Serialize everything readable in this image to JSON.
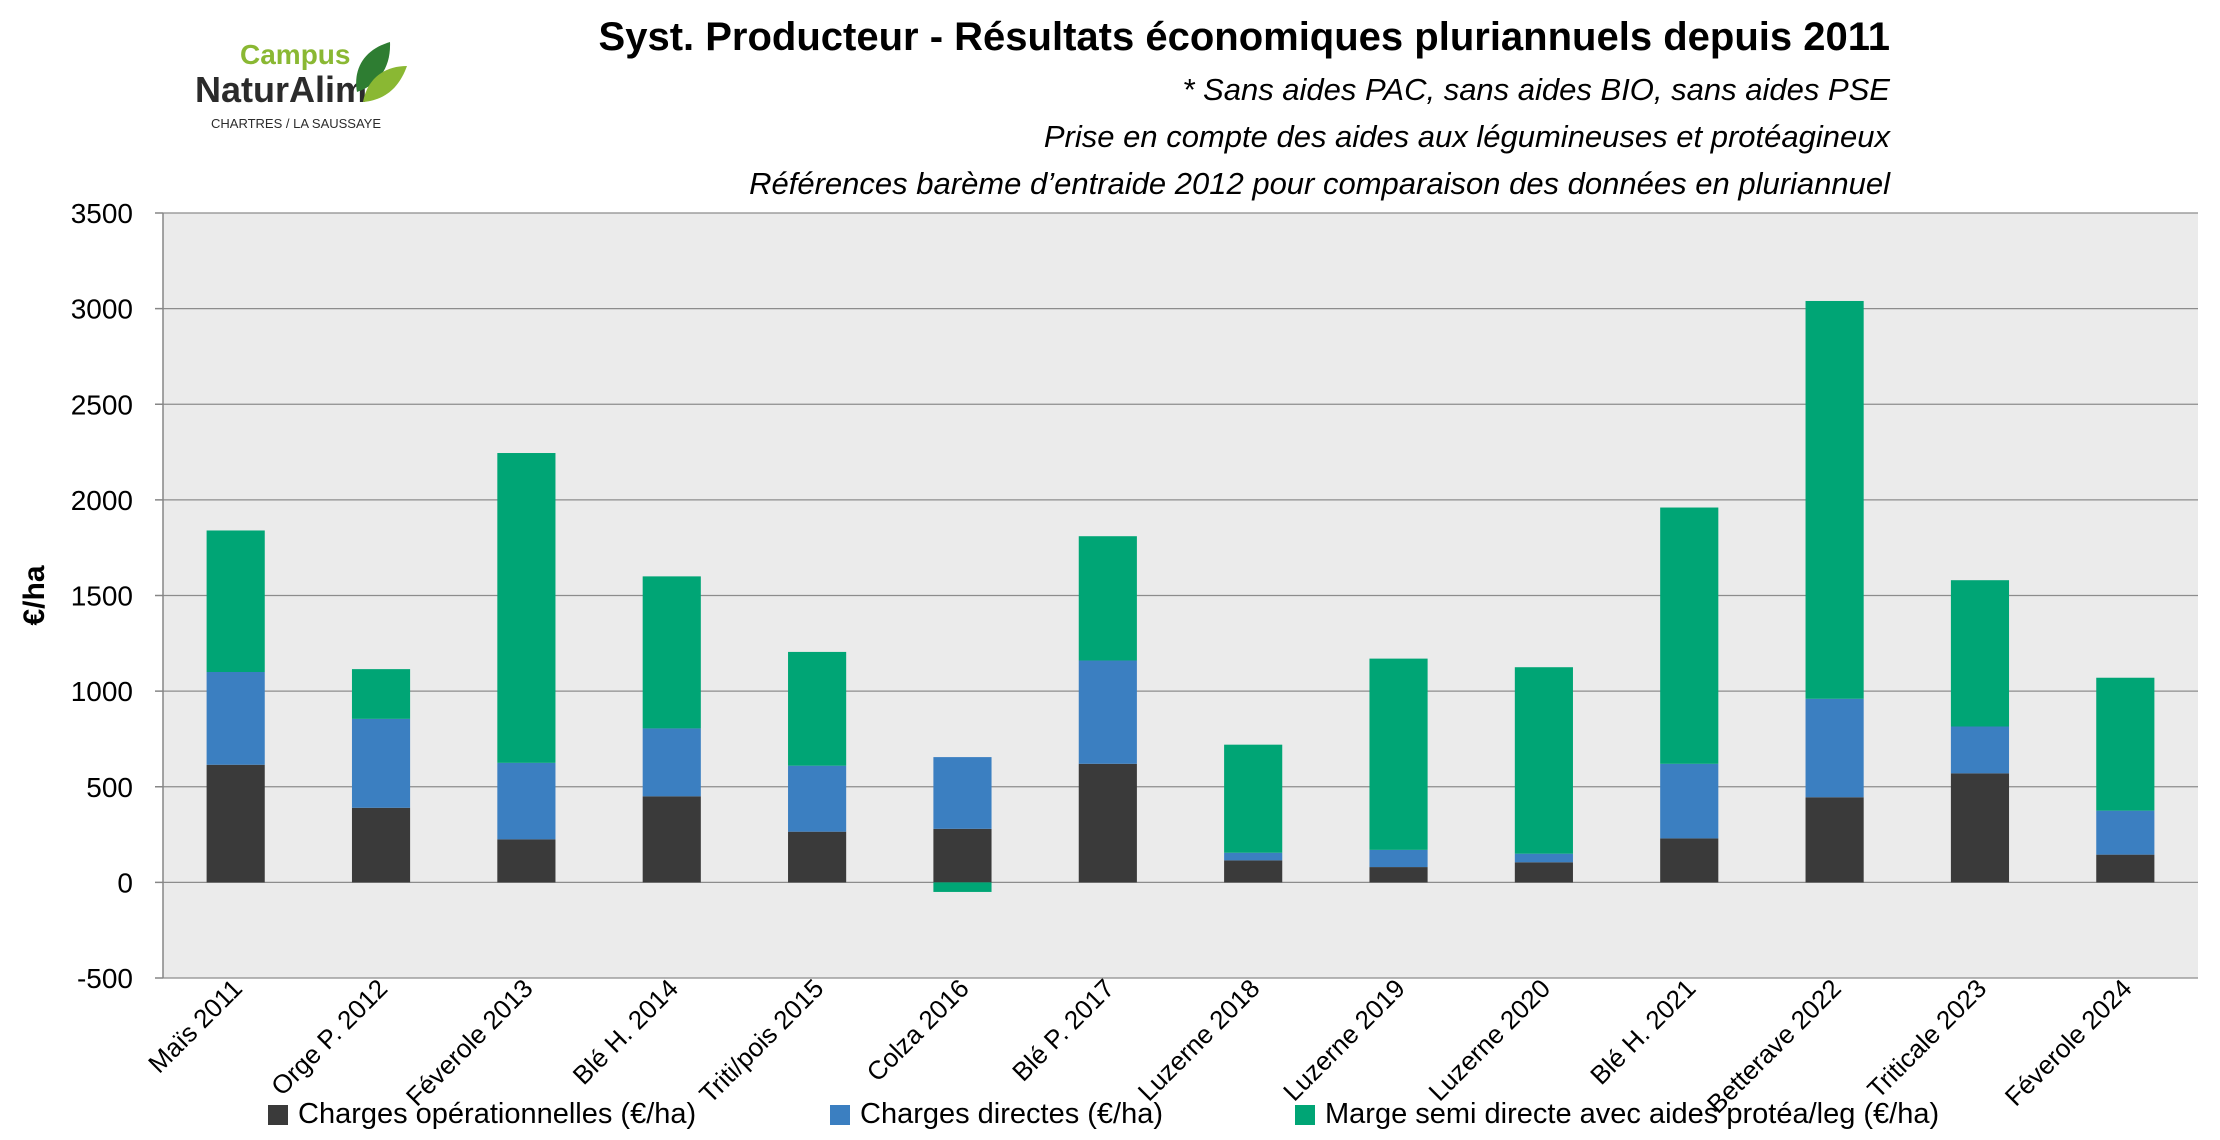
{
  "header": {
    "title": "Syst. Producteur - Résultats économiques pluriannuels depuis 2011",
    "subtitles": [
      "* Sans aides PAC, sans aides BIO, sans aides PSE",
      "Prise en compte des aides aux légumineuses et protéagineux",
      "Références barème d’entraide 2012 pour comparaison des données en pluriannuel"
    ]
  },
  "logo": {
    "line1": "Campus",
    "line2": "NaturAlim",
    "line3": "CHARTRES / LA SAUSSAYE",
    "colors": {
      "green": "#8ab833",
      "dark_green": "#2e7d32",
      "text": "#2b2b2b"
    }
  },
  "chart_data": {
    "type": "bar",
    "stacked": true,
    "title": "Syst. Producteur - Résultats économiques pluriannuels depuis 2011",
    "xlabel": "",
    "ylabel": "€/ha",
    "ylim": [
      -500,
      3500
    ],
    "yticks": [
      -500,
      0,
      500,
      1000,
      1500,
      2000,
      2500,
      3000,
      3500
    ],
    "grid": true,
    "legend": "bottom",
    "categories": [
      "Maïs 2011",
      "Orge P. 2012",
      "Féverole 2013",
      "Blé H. 2014",
      "Triti/pois 2015",
      "Colza 2016",
      "Blé P. 2017",
      "Luzerne 2018",
      "Luzerne 2019",
      "Luzerne 2020",
      "Blé H. 2021",
      "Betterave 2022",
      "Triticale 2023",
      "Féverole 2024"
    ],
    "series": [
      {
        "name": "Charges opérationnelles (€/ha)",
        "color": "#3a3a3a",
        "values": [
          615,
          390,
          225,
          450,
          265,
          280,
          620,
          115,
          80,
          105,
          230,
          445,
          570,
          145
        ]
      },
      {
        "name": "Charges directes (€/ha)",
        "color": "#3b7fc1",
        "values": [
          485,
          465,
          400,
          355,
          345,
          375,
          540,
          40,
          90,
          45,
          390,
          515,
          245,
          230
        ]
      },
      {
        "name": "Marge semi directe avec aides protéa/leg (€/ha)",
        "color": "#00a575",
        "values": [
          740,
          260,
          1620,
          795,
          595,
          -50,
          650,
          565,
          1000,
          975,
          1340,
          2080,
          765,
          695
        ]
      }
    ]
  }
}
